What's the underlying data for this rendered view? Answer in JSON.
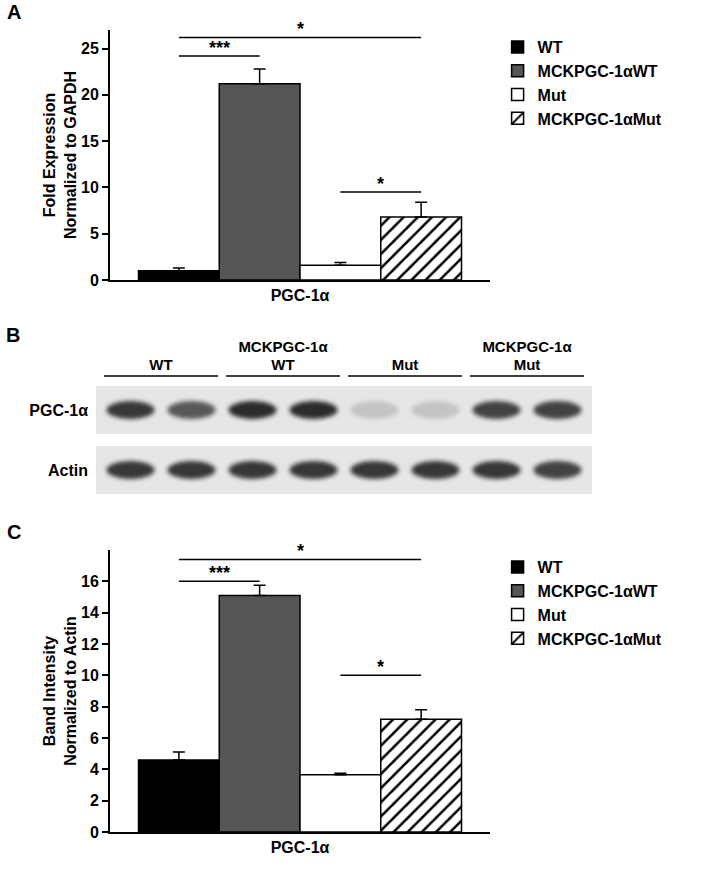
{
  "chart_data": [
    {
      "type": "bar",
      "title": "A",
      "categories": [
        "PGC-1α"
      ],
      "y_label": "Fold Expression\nNormalized to GAPDH",
      "series": [
        {
          "name": "WT",
          "color": "#000000",
          "values": [
            1.0
          ],
          "errors": [
            0.3
          ]
        },
        {
          "name": "MCKPGC-1αWT",
          "color": "#555555",
          "values": [
            21.2
          ],
          "errors": [
            1.6
          ]
        },
        {
          "name": "Mut",
          "color": "#ffffff",
          "values": [
            1.6
          ],
          "errors": [
            0.3
          ]
        },
        {
          "name": "MCKPGC-1αMut",
          "color": "#ffffff",
          "marker": "hatch",
          "values": [
            6.8
          ],
          "errors": [
            1.6
          ]
        }
      ],
      "ylim": [
        0,
        27
      ],
      "yticks": [
        0,
        5,
        10,
        15,
        20,
        25
      ],
      "grid": false,
      "legend": "top right",
      "annotations": [
        {
          "text": "***",
          "from": "WT",
          "to": "MCKPGC-1αWT",
          "y": 24.2
        },
        {
          "text": "*",
          "from": "WT",
          "to": "MCKPGC-1αMut",
          "y": 26.2
        },
        {
          "text": "*",
          "from": "Mut",
          "to": "MCKPGC-1αMut",
          "y": 9.5
        }
      ]
    },
    {
      "type": "bar",
      "title": "C",
      "categories": [
        "PGC-1α"
      ],
      "y_label": "Band Intensity\nNormalized to Actin",
      "series": [
        {
          "name": "WT",
          "color": "#000000",
          "values": [
            4.6
          ],
          "errors": [
            0.5
          ]
        },
        {
          "name": "MCKPGC-1αWT",
          "color": "#555555",
          "values": [
            15.1
          ],
          "errors": [
            0.65
          ]
        },
        {
          "name": "Mut",
          "color": "#ffffff",
          "values": [
            3.65
          ],
          "errors": [
            0.1
          ]
        },
        {
          "name": "MCKPGC-1αMut",
          "color": "#ffffff",
          "marker": "hatch",
          "values": [
            7.2
          ],
          "errors": [
            0.6
          ]
        }
      ],
      "ylim": [
        0,
        18
      ],
      "yticks": [
        0,
        2,
        4,
        6,
        8,
        10,
        12,
        14,
        16
      ],
      "grid": false,
      "legend": "top right",
      "annotations": [
        {
          "text": "***",
          "from": "WT",
          "to": "MCKPGC-1αWT",
          "y": 16.0
        },
        {
          "text": "*",
          "from": "WT",
          "to": "MCKPGC-1αMut",
          "y": 17.4
        },
        {
          "text": "*",
          "from": "Mut",
          "to": "MCKPGC-1αMut",
          "y": 10.0
        }
      ]
    }
  ],
  "blot": {
    "title": "B",
    "groups": [
      {
        "label": [
          "WT"
        ],
        "lanes": 2
      },
      {
        "label": [
          "MCKPGC-1α",
          "WT"
        ],
        "lanes": 2
      },
      {
        "label": [
          "Mut"
        ],
        "lanes": 2
      },
      {
        "label": [
          "MCKPGC-1α",
          "Mut"
        ],
        "lanes": 2
      }
    ],
    "rows": [
      {
        "label": "PGC-1α",
        "intensity": [
          0.85,
          0.7,
          0.9,
          0.9,
          0.15,
          0.15,
          0.8,
          0.8
        ]
      },
      {
        "label": "Actin",
        "intensity": [
          0.85,
          0.85,
          0.85,
          0.85,
          0.85,
          0.85,
          0.85,
          0.8
        ]
      }
    ]
  }
}
